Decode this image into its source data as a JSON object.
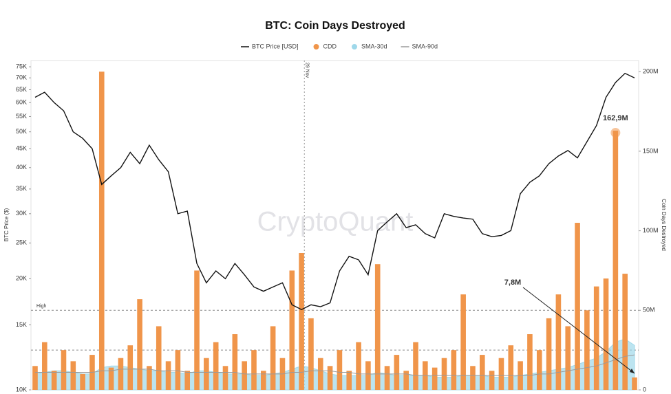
{
  "chart_data": {
    "type": "bar",
    "title": "BTC: Coin Days Destroyed",
    "watermark": "CryptoQuant",
    "ylabel": "BTC Price ($)",
    "y2label": "Coin Days Destroyed",
    "log_y": true,
    "ylim": [
      10000,
      78000
    ],
    "yticks": [
      {
        "value": 10000,
        "label": "10K"
      },
      {
        "value": 15000,
        "label": "15K"
      },
      {
        "value": 20000,
        "label": "20K"
      },
      {
        "value": 25000,
        "label": "25K"
      },
      {
        "value": 30000,
        "label": "30K"
      },
      {
        "value": 35000,
        "label": "35K"
      },
      {
        "value": 40000,
        "label": "40K"
      },
      {
        "value": 45000,
        "label": "45K"
      },
      {
        "value": 50000,
        "label": "50K"
      },
      {
        "value": 55000,
        "label": "55K"
      },
      {
        "value": 60000,
        "label": "60K"
      },
      {
        "value": 65000,
        "label": "65K"
      },
      {
        "value": 70000,
        "label": "70K"
      },
      {
        "value": 75000,
        "label": "75K"
      }
    ],
    "y2lim": [
      0,
      207000000
    ],
    "y2ticks": [
      0,
      {
        "value": 50000000,
        "label": "50M"
      },
      {
        "value": 100000000,
        "label": "100M"
      },
      {
        "value": 150000000,
        "label": "150M"
      },
      {
        "value": 200000000,
        "label": "200M"
      }
    ],
    "reference_lines": [
      {
        "value": 50000000,
        "label": "High"
      },
      {
        "value": 25000000
      }
    ],
    "vline_label": "29 Nov",
    "series": [
      {
        "name": "BTC Price [USD]",
        "color": "#111111",
        "kind": "line",
        "values": [
          62000,
          64000,
          60000,
          57000,
          50000,
          48000,
          45000,
          36000,
          38000,
          40000,
          44000,
          41000,
          46000,
          42000,
          39000,
          30000,
          30500,
          22000,
          19500,
          21000,
          20000,
          22000,
          20500,
          19000,
          18500,
          19000,
          19500,
          17000,
          16500,
          17000,
          16800,
          17200,
          21000,
          23000,
          22500,
          20500,
          27000,
          28500,
          30000,
          27500,
          28000,
          26500,
          25800,
          30000,
          29500,
          29200,
          29000,
          26500,
          26000,
          26200,
          27000,
          34000,
          36500,
          38000,
          41000,
          43000,
          44500,
          42500,
          47000,
          52000,
          62000,
          68000,
          72000,
          70000
        ]
      },
      {
        "name": "CDD",
        "color": "#f0954a",
        "kind": "bar",
        "axis": "y2",
        "values": [
          15000000,
          30000000,
          12000000,
          25000000,
          18000000,
          10000000,
          22000000,
          200000000,
          14000000,
          20000000,
          28000000,
          57000000,
          15000000,
          40000000,
          18000000,
          25000000,
          12000000,
          75000000,
          20000000,
          30000000,
          15000000,
          35000000,
          18000000,
          25000000,
          12000000,
          40000000,
          20000000,
          75000000,
          86000000,
          45000000,
          20000000,
          15000000,
          25000000,
          12000000,
          30000000,
          18000000,
          79000000,
          15000000,
          22000000,
          12000000,
          30000000,
          18000000,
          14000000,
          20000000,
          25000000,
          60000000,
          15000000,
          22000000,
          12000000,
          20000000,
          28000000,
          18000000,
          35000000,
          25000000,
          45000000,
          60000000,
          40000000,
          105000000,
          50000000,
          65000000,
          70000000,
          162900000,
          73000000,
          7800000
        ],
        "value_labels": [
          null,
          null,
          null,
          null,
          null,
          null,
          null,
          null,
          null,
          null,
          null,
          null,
          null,
          null,
          null,
          null,
          null,
          null,
          null,
          null,
          null,
          null,
          null,
          null,
          null,
          null,
          null,
          null,
          null,
          null,
          null,
          null,
          null,
          null,
          null,
          null,
          null,
          null,
          null,
          null,
          null,
          null,
          null,
          null,
          null,
          null,
          null,
          null,
          null,
          null,
          null,
          null,
          null,
          null,
          null,
          null,
          null,
          null,
          null,
          null,
          null,
          "162,9M",
          null,
          "7,8M"
        ]
      },
      {
        "name": "SMA-30d",
        "color": "#9fd8ea",
        "kind": "area",
        "axis": "y2",
        "values": [
          10000000,
          11000000,
          12000000,
          12000000,
          11000000,
          10000000,
          10000000,
          14000000,
          15000000,
          15000000,
          14000000,
          13000000,
          12000000,
          12000000,
          11000000,
          11000000,
          10000000,
          12000000,
          12000000,
          11000000,
          10000000,
          10000000,
          10000000,
          9000000,
          9000000,
          10000000,
          11000000,
          13000000,
          15000000,
          14000000,
          12000000,
          10000000,
          9000000,
          9000000,
          9000000,
          9000000,
          11000000,
          10000000,
          9000000,
          9000000,
          9000000,
          9000000,
          8000000,
          8000000,
          8000000,
          9000000,
          9000000,
          9000000,
          8000000,
          8000000,
          8000000,
          9000000,
          10000000,
          11000000,
          12000000,
          13000000,
          14000000,
          16000000,
          18000000,
          20000000,
          24000000,
          30000000,
          32000000,
          28000000
        ]
      },
      {
        "name": "SMA-90d",
        "color": "#9a9a9a",
        "kind": "line",
        "axis": "y2",
        "values": [
          11000000,
          11000000,
          11000000,
          11000000,
          11000000,
          11000000,
          11000000,
          12000000,
          12000000,
          13000000,
          13000000,
          13000000,
          13000000,
          12000000,
          12000000,
          12000000,
          11000000,
          11000000,
          11000000,
          11000000,
          11000000,
          11000000,
          10000000,
          10000000,
          10000000,
          10000000,
          10000000,
          11000000,
          11000000,
          12000000,
          12000000,
          12000000,
          11000000,
          11000000,
          10000000,
          10000000,
          10000000,
          10000000,
          10000000,
          10000000,
          9000000,
          9000000,
          9000000,
          9000000,
          9000000,
          9000000,
          9000000,
          9000000,
          9000000,
          9000000,
          9000000,
          9000000,
          9000000,
          10000000,
          10000000,
          11000000,
          12000000,
          13000000,
          14000000,
          15000000,
          17000000,
          19000000,
          21000000,
          22000000
        ]
      }
    ]
  }
}
